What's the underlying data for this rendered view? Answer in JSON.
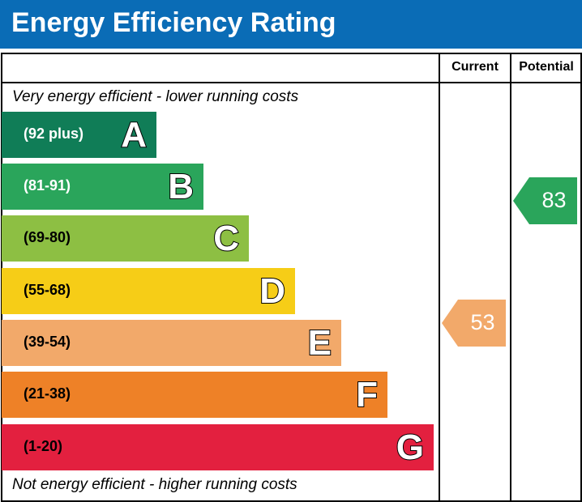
{
  "title": "Energy Efficiency Rating",
  "chart_data": {
    "type": "bar",
    "columns": [
      "Current",
      "Potential"
    ],
    "top_note": "Very energy efficient - lower running costs",
    "bottom_note": "Not energy efficient - higher running costs",
    "bands": [
      {
        "letter": "A",
        "range": "(92 plus)",
        "color": "#107d57"
      },
      {
        "letter": "B",
        "range": "(81-91)",
        "color": "#2aa55b"
      },
      {
        "letter": "C",
        "range": "(69-80)",
        "color": "#8dbf43"
      },
      {
        "letter": "D",
        "range": "(55-68)",
        "color": "#f6cd17"
      },
      {
        "letter": "E",
        "range": "(39-54)",
        "color": "#f2a96a"
      },
      {
        "letter": "F",
        "range": "(21-38)",
        "color": "#ee8127"
      },
      {
        "letter": "G",
        "range": "(1-20)",
        "color": "#e3203f"
      }
    ],
    "current": {
      "value": "53",
      "band": "E",
      "color": "#f2a96a"
    },
    "potential": {
      "value": "83",
      "band": "B",
      "color": "#2aa55b"
    }
  }
}
